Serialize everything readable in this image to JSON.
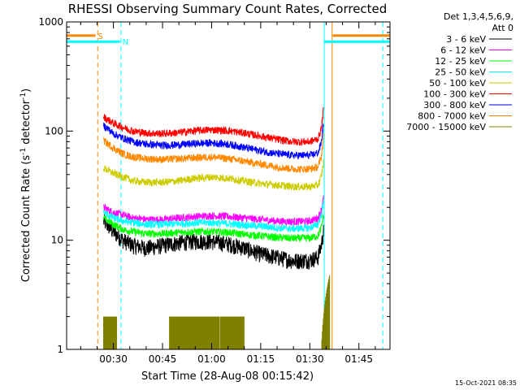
{
  "chart_data": {
    "type": "line",
    "title": "RHESSI Observing Summary Count Rates, Corrected",
    "xlabel": "Start Time (28-Aug-08 00:15:42)",
    "ylabel_main": "Corrected Count Rate (s",
    "ylabel_sup1": "-1",
    "ylabel_mid": " detector",
    "ylabel_sup2": "-1",
    "ylabel_end": ")",
    "yscale": "log",
    "ylim": [
      1,
      1000
    ],
    "xlim_minutes": [
      15.7,
      114.5
    ],
    "y_ticks": [
      {
        "value": 1,
        "label": "1"
      },
      {
        "value": 10,
        "label": "10"
      },
      {
        "value": 100,
        "label": "100"
      },
      {
        "value": 1000,
        "label": "1000"
      }
    ],
    "x_ticks": [
      {
        "minutes": 30,
        "label": "00:30"
      },
      {
        "minutes": 45,
        "label": "00:45"
      },
      {
        "minutes": 60,
        "label": "01:00"
      },
      {
        "minutes": 75,
        "label": "01:15"
      },
      {
        "minutes": 90,
        "label": "01:30"
      },
      {
        "minutes": 105,
        "label": "01:45"
      }
    ],
    "legend_header": [
      "Det 1,3,4,5,6,9,",
      "Att 0"
    ],
    "series": [
      {
        "name": "3 - 6 keV",
        "color": "#000000",
        "x": [
          27,
          30,
          33,
          36,
          40,
          45,
          50,
          55,
          60,
          65,
          70,
          75,
          80,
          85,
          90,
          92.5,
          93.5,
          94.2
        ],
        "y": [
          15,
          12,
          10,
          9,
          8.5,
          9,
          9.5,
          9.8,
          9.8,
          9.3,
          8.5,
          7.5,
          7,
          6.5,
          6.6,
          7,
          9,
          12
        ]
      },
      {
        "name": "6 - 12 keV",
        "color": "#ff00ff",
        "x": [
          27,
          30,
          33,
          36,
          40,
          45,
          50,
          55,
          60,
          65,
          70,
          75,
          80,
          85,
          90,
          92.5,
          93.5,
          94.2
        ],
        "y": [
          20,
          18,
          17,
          16,
          15.5,
          15.5,
          16,
          16.5,
          16.8,
          16.5,
          16,
          15.5,
          15,
          14.8,
          15,
          16,
          19,
          24
        ]
      },
      {
        "name": "12 - 25 keV",
        "color": "#00ff00",
        "x": [
          27,
          30,
          33,
          36,
          40,
          45,
          50,
          55,
          60,
          65,
          70,
          75,
          80,
          85,
          90,
          92.5,
          93.5,
          94.2
        ],
        "y": [
          16,
          14,
          12.5,
          12,
          11.5,
          11.5,
          11.8,
          12,
          12,
          11.8,
          11.3,
          11,
          10.6,
          10.4,
          10.5,
          11,
          13,
          17
        ]
      },
      {
        "name": "25 - 50 keV",
        "color": "#00ffff",
        "x": [
          27,
          30,
          33,
          36,
          40,
          45,
          50,
          55,
          60,
          65,
          70,
          75,
          80,
          85,
          90,
          92.5,
          93.5,
          94.2
        ],
        "y": [
          18,
          16,
          15,
          14.5,
          14,
          14,
          14.2,
          14.5,
          14.5,
          14.2,
          13.8,
          13.5,
          13,
          12.8,
          13,
          14,
          17,
          22
        ]
      },
      {
        "name": "50 - 100 keV",
        "color": "#cccc00",
        "x": [
          27,
          30,
          33,
          36,
          40,
          45,
          50,
          55,
          60,
          65,
          70,
          75,
          80,
          85,
          90,
          92.5,
          93.5,
          94.2
        ],
        "y": [
          46,
          41,
          38,
          35,
          34,
          34,
          35,
          37,
          38,
          37,
          35,
          33,
          32,
          31,
          31,
          32,
          38,
          52
        ]
      },
      {
        "name": "100 - 300 keV",
        "color": "#ff0000",
        "x": [
          27,
          30,
          33,
          36,
          40,
          45,
          50,
          55,
          60,
          65,
          70,
          75,
          80,
          85,
          90,
          92.5,
          93.5,
          94.2
        ],
        "y": [
          135,
          118,
          108,
          100,
          96,
          95,
          97,
          101,
          103,
          101,
          96,
          90,
          84,
          80,
          80,
          85,
          105,
          160
        ]
      },
      {
        "name": "300 - 800 keV",
        "color": "#0000ff",
        "x": [
          27,
          30,
          33,
          36,
          40,
          45,
          50,
          55,
          60,
          65,
          70,
          75,
          80,
          85,
          90,
          92.5,
          93.5,
          94.2
        ],
        "y": [
          113,
          95,
          86,
          80,
          76,
          74,
          75,
          77,
          78,
          76,
          71,
          66,
          62,
          60,
          60,
          63,
          78,
          120
        ]
      },
      {
        "name": "800 - 7000 keV",
        "color": "#ff8800",
        "x": [
          27,
          30,
          33,
          36,
          40,
          45,
          50,
          55,
          60,
          65,
          70,
          75,
          80,
          85,
          90,
          92.5,
          93.5,
          94.2
        ],
        "y": [
          82,
          70,
          62,
          58,
          56,
          55,
          56,
          57,
          58,
          56,
          53,
          50,
          47,
          45,
          45,
          47,
          58,
          90
        ]
      },
      {
        "name": "7000 - 15000 keV",
        "color": "#808000",
        "x": [
          27,
          28.5,
          29.5,
          31,
          47,
          50,
          53,
          56,
          60,
          64,
          67,
          70
        ],
        "y": [
          2,
          2,
          2,
          2,
          2,
          2,
          2,
          2,
          2,
          2,
          2,
          2
        ]
      }
    ],
    "bars": [
      {
        "label": "S",
        "color": "#ff8800",
        "y": 750,
        "segments_minutes": [
          [
            15.7,
            24.5
          ],
          [
            97,
            114.5
          ]
        ]
      },
      {
        "label": "N",
        "color": "#00ffff",
        "y": 660,
        "segments_minutes": [
          [
            15.7,
            32
          ],
          [
            94.5,
            114.5
          ]
        ]
      }
    ],
    "vlines_minutes": [
      {
        "minutes": 25.2,
        "color": "#ff8800",
        "dash": true
      },
      {
        "minutes": 32.3,
        "color": "#00ffff",
        "dash": true
      },
      {
        "minutes": 94.4,
        "color": "#00ffff",
        "dash": false
      },
      {
        "minutes": 96.8,
        "color": "#ff8800",
        "dash": false
      },
      {
        "minutes": 112.3,
        "color": "#00ffff",
        "dash": true
      },
      {
        "minutes": 15.7,
        "color": "#00ffff",
        "dash": false
      }
    ]
  },
  "timestamp": "15-Oct-2021 08:35"
}
